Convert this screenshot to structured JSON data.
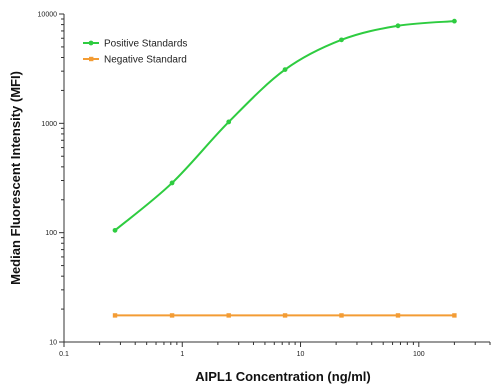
{
  "chart_data": {
    "type": "line",
    "xlabel": "AIPL1 Concentration (ng/ml)",
    "ylabel": "Median  Fluorescent Intensity  (MFI)",
    "x_scale": "log",
    "y_scale": "log",
    "xlim": [
      0.1,
      400
    ],
    "ylim": [
      10,
      10000
    ],
    "x_ticks": [
      {
        "value": 0.1,
        "label": "0.1"
      },
      {
        "value": 1,
        "label": "1"
      },
      {
        "value": 10,
        "label": "10"
      },
      {
        "value": 100,
        "label": "100"
      }
    ],
    "y_ticks": [
      {
        "value": 10,
        "label": "10"
      },
      {
        "value": 100,
        "label": "100"
      },
      {
        "value": 1000,
        "label": "1000"
      },
      {
        "value": 10000,
        "label": "10000"
      }
    ],
    "legend_position": "top-left",
    "series": [
      {
        "name": "Positive Standards",
        "color": "#2ecc40",
        "marker": "circle",
        "curve": "four-parameter-logistic fit",
        "points": [
          {
            "x": 0.27,
            "y": 105
          },
          {
            "x": 0.82,
            "y": 285
          },
          {
            "x": 2.47,
            "y": 1030
          },
          {
            "x": 7.4,
            "y": 3100
          },
          {
            "x": 22.2,
            "y": 5800
          },
          {
            "x": 66.7,
            "y": 7800
          },
          {
            "x": 200,
            "y": 8600
          }
        ]
      },
      {
        "name": "Negative Standard",
        "color": "#f39c34",
        "marker": "square",
        "curve": "straight",
        "points": [
          {
            "x": 0.27,
            "y": 17.5
          },
          {
            "x": 0.82,
            "y": 17.5
          },
          {
            "x": 2.47,
            "y": 17.5
          },
          {
            "x": 7.4,
            "y": 17.5
          },
          {
            "x": 22.2,
            "y": 17.5
          },
          {
            "x": 66.7,
            "y": 17.5
          },
          {
            "x": 200,
            "y": 17.5
          }
        ]
      }
    ]
  }
}
